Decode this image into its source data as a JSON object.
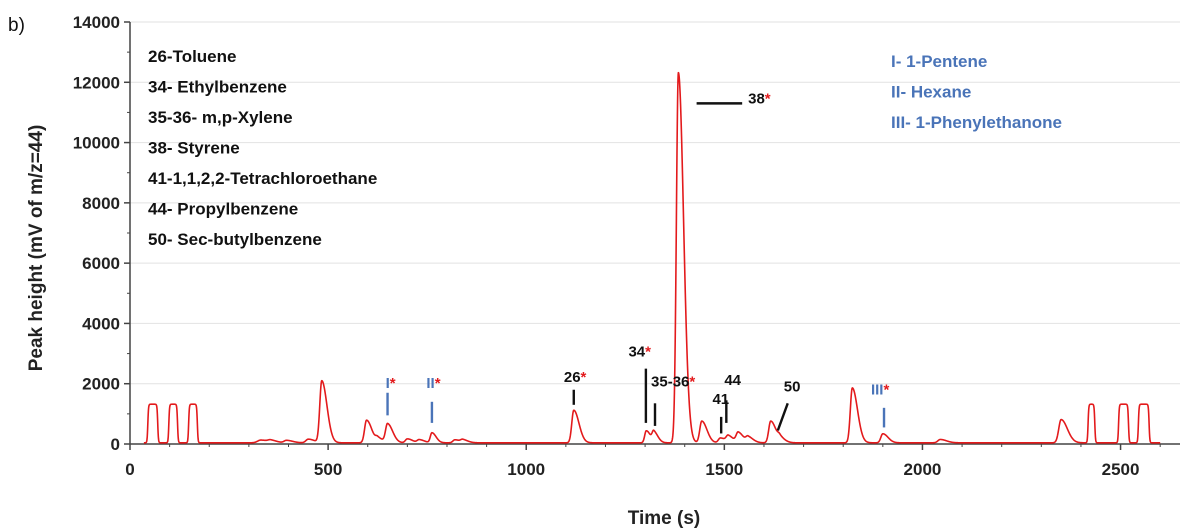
{
  "panel_label": "b)",
  "chart_data": {
    "type": "line",
    "xlabel": "Time (s)",
    "ylabel": "Peak height (mV of m/z=44)",
    "xlim": [
      0,
      2650
    ],
    "ylim": [
      0,
      14000
    ],
    "x_ticks": [
      0,
      500,
      1000,
      1500,
      2000,
      2500
    ],
    "y_ticks": [
      0,
      2000,
      4000,
      6000,
      8000,
      10000,
      12000,
      14000
    ],
    "grid": "horizontal",
    "series_color": "#e31a1c",
    "baseline": 40,
    "peaks": [
      {
        "x": 330,
        "y": 90,
        "w": 8
      },
      {
        "x": 355,
        "y": 60,
        "w": 6
      },
      {
        "x": 395,
        "y": 80,
        "w": 6
      },
      {
        "x": 450,
        "y": 120,
        "w": 6
      },
      {
        "x": 484,
        "y": 2050,
        "w": 5
      },
      {
        "x": 597,
        "y": 750,
        "w": 5
      },
      {
        "x": 625,
        "y": 150,
        "w": 5
      },
      {
        "x": 650,
        "y": 620,
        "w": 5
      },
      {
        "x": 700,
        "y": 130,
        "w": 5
      },
      {
        "x": 730,
        "y": 100,
        "w": 5
      },
      {
        "x": 762,
        "y": 330,
        "w": 4
      },
      {
        "x": 820,
        "y": 100,
        "w": 5
      },
      {
        "x": 840,
        "y": 90,
        "w": 5
      },
      {
        "x": 1120,
        "y": 1080,
        "w": 5
      },
      {
        "x": 1303,
        "y": 400,
        "w": 4
      },
      {
        "x": 1322,
        "y": 340,
        "w": 4
      },
      {
        "x": 1384,
        "y": 12280,
        "w": 5
      },
      {
        "x": 1443,
        "y": 720,
        "w": 5
      },
      {
        "x": 1490,
        "y": 160,
        "w": 5
      },
      {
        "x": 1510,
        "y": 210,
        "w": 5
      },
      {
        "x": 1535,
        "y": 330,
        "w": 5
      },
      {
        "x": 1560,
        "y": 180,
        "w": 5
      },
      {
        "x": 1617,
        "y": 720,
        "w": 5
      },
      {
        "x": 1640,
        "y": 150,
        "w": 5
      },
      {
        "x": 1823,
        "y": 1820,
        "w": 5
      },
      {
        "x": 1900,
        "y": 300,
        "w": 5
      },
      {
        "x": 2045,
        "y": 110,
        "w": 6
      },
      {
        "x": 2350,
        "y": 770,
        "w": 6
      }
    ],
    "plateaus": [
      {
        "x1": 45,
        "x2": 70,
        "y": 1280
      },
      {
        "x1": 98,
        "x2": 120,
        "y": 1280
      },
      {
        "x1": 148,
        "x2": 170,
        "y": 1280
      },
      {
        "x1": 2418,
        "x2": 2435,
        "y": 1280
      },
      {
        "x1": 2495,
        "x2": 2520,
        "y": 1280
      },
      {
        "x1": 2545,
        "x2": 2572,
        "y": 1280
      }
    ],
    "legend_compounds": [
      "26-Toluene",
      "34- Ethylbenzene",
      "35-36- m,p-Xylene",
      "38- Styrene",
      "41-1,1,2,2-Tetrachloroethane",
      "44- Propylbenzene",
      "50- Sec-butylbenzene"
    ],
    "legend_interferences": [
      "I- 1-Pentene",
      "II- Hexane",
      "III- 1-Phenylethanone"
    ],
    "annotations": [
      {
        "label": "I",
        "star": "*",
        "color": "#4a74b8",
        "tx": 645,
        "ty": 1850,
        "line": [
          [
            650,
            1700
          ],
          [
            650,
            950
          ]
        ]
      },
      {
        "label": "II",
        "star": "*",
        "color": "#4a74b8",
        "tx": 748,
        "ty": 1850,
        "line": [
          [
            762,
            1400
          ],
          [
            762,
            700
          ]
        ]
      },
      {
        "label": "26",
        "star": "*",
        "color": "#111111",
        "tx": 1095,
        "ty": 2050,
        "line": [
          [
            1120,
            1800
          ],
          [
            1120,
            1300
          ]
        ]
      },
      {
        "label": "34",
        "star": "*",
        "color": "#111111",
        "tx": 1258,
        "ty": 2900,
        "line": [
          [
            1302,
            2500
          ],
          [
            1302,
            700
          ]
        ]
      },
      {
        "label": "35-36",
        "star": "*",
        "color": "#111111",
        "tx": 1315,
        "ty": 1900,
        "line": [
          [
            1325,
            1350
          ],
          [
            1325,
            600
          ]
        ]
      },
      {
        "label": "38",
        "star": "*",
        "color": "#111111",
        "tx": 1560,
        "ty": 11300,
        "line": [
          [
            1430,
            11300
          ],
          [
            1545,
            11300
          ]
        ]
      },
      {
        "label": "41",
        "star": "",
        "color": "#111111",
        "tx": 1470,
        "ty": 1320,
        "line": [
          [
            1492,
            900
          ],
          [
            1492,
            350
          ]
        ]
      },
      {
        "label": "44",
        "star": "",
        "color": "#111111",
        "tx": 1500,
        "ty": 1950,
        "line": [
          [
            1505,
            1450
          ],
          [
            1505,
            700
          ]
        ]
      },
      {
        "label": "50",
        "star": "",
        "color": "#111111",
        "tx": 1650,
        "ty": 1750,
        "line": [
          [
            1660,
            1350
          ],
          [
            1635,
            450
          ]
        ]
      },
      {
        "label": "III",
        "star": "*",
        "color": "#4a74b8",
        "tx": 1870,
        "ty": 1650,
        "line": [
          [
            1903,
            1200
          ],
          [
            1903,
            550
          ]
        ]
      }
    ]
  }
}
